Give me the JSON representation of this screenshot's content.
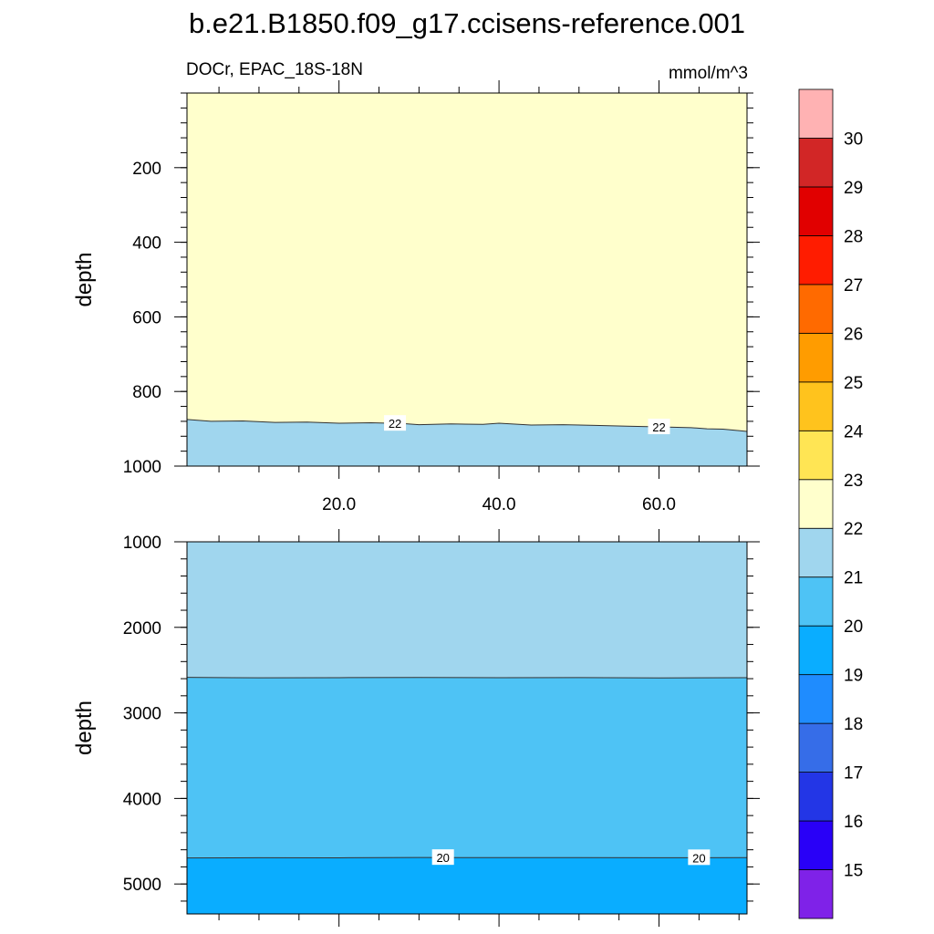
{
  "chart_data": {
    "type": "contour",
    "title": "b.e21.B1850.f09_g17.ccisens-reference.001",
    "subtitle_left": "DOCr, EPAC_18S-18N",
    "units": "mmol/m^3",
    "xlim": [
      1,
      71
    ],
    "x_tick_labels": [
      "20.0",
      "40.0",
      "60.0"
    ],
    "x_ticks": [
      20,
      40,
      60
    ],
    "panels": [
      {
        "id": "upper",
        "ylabel": "depth",
        "ylim": [
          0,
          1000
        ],
        "y_ticks": [
          200,
          400,
          600,
          800,
          1000
        ],
        "y_tick_labels": [
          "200",
          "400",
          "600",
          "800",
          "1000"
        ],
        "background_level_color": "#ffffcc",
        "regions": [
          {
            "between": "contour_22_and_bottom",
            "color": "#a0d6ee"
          }
        ],
        "contours": [
          {
            "level": 22,
            "x": [
              1,
              4,
              8,
              12,
              16,
              20,
              24,
              28,
              30,
              34,
              38,
              40,
              44,
              48,
              52,
              56,
              60,
              64,
              66,
              68,
              70,
              71
            ],
            "y": [
              875,
              880,
              879,
              883,
              882,
              885,
              884,
              886,
              889,
              887,
              888,
              885,
              890,
              889,
              891,
              893,
              895,
              897,
              900,
              901,
              905,
              907
            ],
            "labels": [
              {
                "x": 27,
                "text": "22"
              },
              {
                "x": 60,
                "text": "22"
              }
            ]
          }
        ]
      },
      {
        "id": "lower",
        "ylabel": "depth",
        "ylim": [
          1000,
          5350
        ],
        "y_ticks": [
          1000,
          2000,
          3000,
          4000,
          5000
        ],
        "y_tick_labels": [
          "1000",
          "2000",
          "3000",
          "4000",
          "5000"
        ],
        "background_level_color": "#a0d6ee",
        "regions": [
          {
            "between": "contour_21_and_contour_20",
            "color": "#4ec3f5"
          },
          {
            "between": "contour_20_and_bottom",
            "color": "#0aadff"
          }
        ],
        "contours": [
          {
            "level": 21,
            "x": [
              1,
              10,
              20,
              30,
              40,
              50,
              60,
              71
            ],
            "y": [
              2585,
              2590,
              2588,
              2586,
              2589,
              2587,
              2591,
              2588
            ],
            "labels": []
          },
          {
            "level": 20,
            "x": [
              1,
              10,
              20,
              30,
              40,
              50,
              60,
              71
            ],
            "y": [
              4695,
              4693,
              4694,
              4690,
              4692,
              4691,
              4693,
              4692
            ],
            "labels": [
              {
                "x": 33,
                "text": "20"
              },
              {
                "x": 65,
                "text": "20"
              }
            ]
          }
        ]
      }
    ],
    "colorbar": {
      "labels": [
        "15",
        "16",
        "17",
        "18",
        "19",
        "20",
        "21",
        "22",
        "23",
        "24",
        "25",
        "26",
        "27",
        "28",
        "29",
        "30"
      ],
      "colors_bottom_to_top": [
        "#7f22e8",
        "#2900f7",
        "#2336e6",
        "#366de8",
        "#1f8cfe",
        "#0aadff",
        "#4ec3f5",
        "#a0d6ee",
        "#ffffcc",
        "#ffe554",
        "#ffc31d",
        "#ff9c00",
        "#ff6a00",
        "#ff1c00",
        "#e10000",
        "#d22626",
        "#ffb2b3"
      ]
    }
  }
}
